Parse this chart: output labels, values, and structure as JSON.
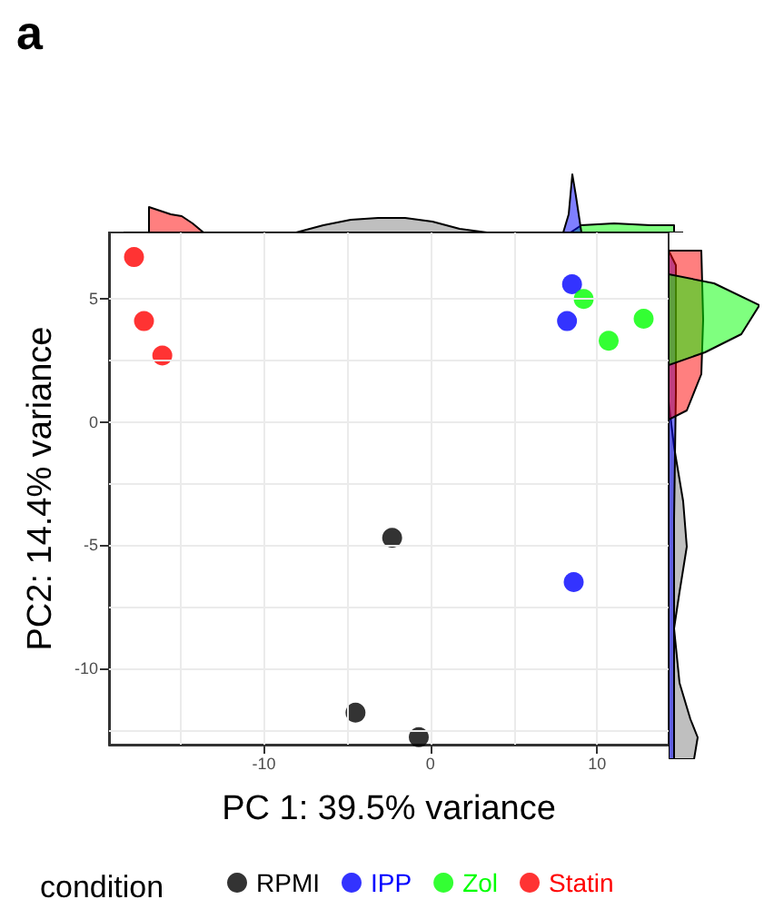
{
  "chart_data": {
    "type": "scatter",
    "title": "a",
    "xlabel": "PC 1: 39.5% variance",
    "ylabel": "PC2: 14.4% variance",
    "legend_title": "condition",
    "legend": "bottom",
    "grid": true,
    "marker": "circle",
    "xlim": [
      -19.3,
      14.3
    ],
    "ylim": [
      -13.1,
      7.7
    ],
    "xticks": [
      {
        "value": -15,
        "label": null
      },
      -10,
      {
        "value": -5,
        "label": null
      },
      0,
      {
        "value": 5,
        "label": null
      },
      10
    ],
    "yticks": [
      {
        "value": -12.5,
        "label": null
      },
      -10,
      {
        "value": -7.5,
        "label": null
      },
      -5,
      {
        "value": -2.5,
        "label": null
      },
      0,
      {
        "value": 2.5,
        "label": null
      },
      5
    ],
    "series": [
      {
        "name": "RPMI",
        "color": "#000000",
        "x": [
          -2.3,
          -4.5,
          -0.7
        ],
        "values": [
          -4.7,
          -11.8,
          -12.8
        ]
      },
      {
        "name": "IPP",
        "color": "#0000ff",
        "x": [
          8.5,
          8.2,
          8.6
        ],
        "values": [
          5.6,
          4.1,
          -6.5
        ]
      },
      {
        "name": "Zol",
        "color": "#00ff00",
        "x": [
          9.2,
          10.7,
          12.8
        ],
        "values": [
          5.0,
          3.3,
          4.2
        ]
      },
      {
        "name": "Statin",
        "color": "#ff0000",
        "x": [
          -17.8,
          -17.2,
          -16.1
        ],
        "values": [
          6.7,
          4.1,
          2.7
        ]
      }
    ]
  }
}
